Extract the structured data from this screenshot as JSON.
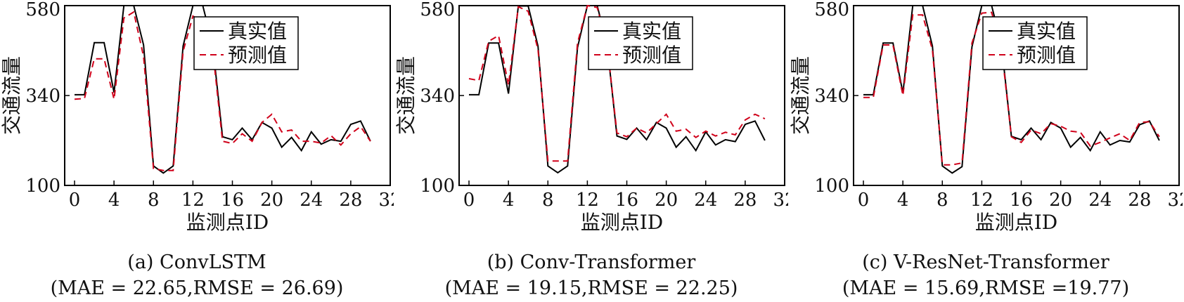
{
  "chart_data": [
    {
      "type": "line",
      "caption": "(a) ConvLSTM",
      "metrics": "(MAE = 22.65,RMSE = 26.69)",
      "xlabel": "监测点ID",
      "ylabel": "交通流量",
      "xlim": [
        -1,
        32
      ],
      "ylim": [
        100,
        580
      ],
      "xticks": [
        "0",
        "4",
        "8",
        "12",
        "16",
        "20",
        "24",
        "28",
        "32"
      ],
      "yticks": [
        "100",
        "340",
        "580"
      ],
      "legend": "top-right",
      "x": [
        0,
        1,
        2,
        3,
        4,
        5,
        6,
        7,
        8,
        9,
        10,
        11,
        12,
        13,
        14,
        15,
        16,
        17,
        18,
        19,
        20,
        21,
        22,
        23,
        24,
        25,
        26,
        27,
        28,
        29,
        30
      ],
      "series": [
        {
          "name": "真实值",
          "color": "#000000",
          "dash": "solid",
          "values": [
            342,
            342,
            481,
            481,
            348,
            580,
            580,
            475,
            152,
            133,
            152,
            472,
            580,
            580,
            475,
            230,
            222,
            253,
            222,
            268,
            253,
            202,
            228,
            193,
            243,
            210,
            222,
            218,
            263,
            272,
            218
          ]
        },
        {
          "name": "预测值",
          "color": "#d0021b",
          "dash": "dashed",
          "values": [
            330,
            332,
            438,
            438,
            330,
            547,
            563,
            444,
            145,
            140,
            140,
            458,
            552,
            537,
            462,
            218,
            212,
            238,
            218,
            268,
            290,
            243,
            248,
            218,
            218,
            213,
            233,
            208,
            238,
            257,
            218
          ]
        }
      ]
    },
    {
      "type": "line",
      "caption": "(b) Conv-Transformer",
      "metrics": "(MAE = 19.15,RMSE = 22.25)",
      "xlabel": "监测点ID",
      "ylabel": "交通流量",
      "xlim": [
        -1,
        32
      ],
      "ylim": [
        100,
        580
      ],
      "xticks": [
        "0",
        "4",
        "8",
        "12",
        "16",
        "20",
        "24",
        "28",
        "32"
      ],
      "yticks": [
        "100",
        "340",
        "580"
      ],
      "legend": "top-right",
      "x": [
        0,
        1,
        2,
        3,
        4,
        5,
        6,
        7,
        8,
        9,
        10,
        11,
        12,
        13,
        14,
        15,
        16,
        17,
        18,
        19,
        20,
        21,
        22,
        23,
        24,
        25,
        26,
        27,
        28,
        29,
        30
      ],
      "series": [
        {
          "name": "真实值",
          "color": "#000000",
          "dash": "solid",
          "values": [
            342,
            342,
            480,
            480,
            345,
            579,
            579,
            472,
            152,
            134,
            152,
            468,
            580,
            580,
            475,
            232,
            223,
            253,
            222,
            268,
            253,
            202,
            230,
            193,
            243,
            208,
            222,
            217,
            263,
            272,
            220
          ]
        },
        {
          "name": "预测值",
          "color": "#d0021b",
          "dash": "dashed",
          "values": [
            385,
            380,
            485,
            500,
            368,
            577,
            565,
            463,
            165,
            165,
            165,
            480,
            580,
            575,
            475,
            240,
            230,
            253,
            240,
            265,
            290,
            245,
            250,
            228,
            245,
            232,
            242,
            235,
            275,
            290,
            278
          ]
        }
      ]
    },
    {
      "type": "line",
      "caption": "(c) V-ResNet-Transformer",
      "metrics": "(MAE = 15.69,RMSE =19.77)",
      "xlabel": "监测点ID",
      "ylabel": "交通流量",
      "xlim": [
        -1,
        32
      ],
      "ylim": [
        100,
        580
      ],
      "xticks": [
        "0",
        "4",
        "8",
        "12",
        "16",
        "20",
        "24",
        "28",
        "32"
      ],
      "yticks": [
        "100",
        "340",
        "580"
      ],
      "legend": "top-right",
      "x": [
        0,
        1,
        2,
        3,
        4,
        5,
        6,
        7,
        8,
        9,
        10,
        11,
        12,
        13,
        14,
        15,
        16,
        17,
        18,
        19,
        20,
        21,
        22,
        23,
        24,
        25,
        26,
        27,
        28,
        29,
        30
      ],
      "series": [
        {
          "name": "真实值",
          "color": "#000000",
          "dash": "solid",
          "values": [
            342,
            342,
            480,
            480,
            347,
            580,
            580,
            472,
            152,
            133,
            150,
            470,
            580,
            580,
            474,
            231,
            222,
            253,
            222,
            268,
            253,
            202,
            228,
            193,
            243,
            208,
            220,
            216,
            262,
            272,
            220
          ]
        },
        {
          "name": "预测值",
          "color": "#d0021b",
          "dash": "dashed",
          "values": [
            335,
            335,
            475,
            475,
            340,
            555,
            555,
            462,
            155,
            155,
            160,
            480,
            560,
            562,
            465,
            230,
            215,
            248,
            238,
            265,
            258,
            245,
            242,
            205,
            215,
            227,
            238,
            220,
            268,
            270,
            230
          ]
        }
      ]
    }
  ]
}
